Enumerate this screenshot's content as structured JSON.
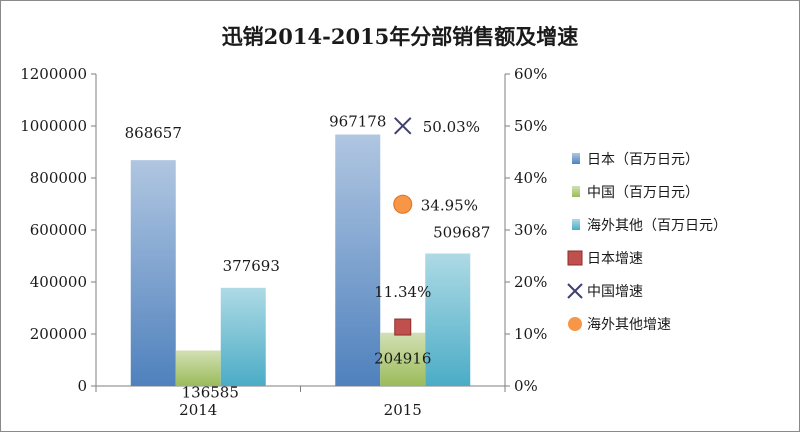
{
  "chart_data": {
    "type": "bar",
    "title": "迅销2014-2015年分部销售额及增速",
    "categories": [
      "2014",
      "2015"
    ],
    "series": [
      {
        "name": "日本（百万日元）",
        "axis": "left",
        "color": "#4f81bd",
        "values": [
          868657,
          967178
        ],
        "labels": [
          "868657",
          "967178"
        ]
      },
      {
        "name": "中国（百万日元）",
        "axis": "left",
        "color": "#9bbb59",
        "values": [
          136585,
          204916
        ],
        "labels": [
          "136585",
          "204916"
        ]
      },
      {
        "name": "海外其他（百万日元）",
        "axis": "left",
        "color": "#4bacc6",
        "values": [
          377693,
          509687
        ],
        "labels": [
          "377693",
          "509687"
        ]
      }
    ],
    "markers": [
      {
        "name": "日本增速",
        "axis": "right",
        "marker": "square",
        "color": "#c0504d",
        "x": "2015",
        "value": 11.34,
        "label": "11.34%"
      },
      {
        "name": "中国增速",
        "axis": "right",
        "marker": "x",
        "color": "#404070",
        "x": "2015",
        "value": 50.03,
        "label": "50.03%"
      },
      {
        "name": "海外其他增速",
        "axis": "right",
        "marker": "circle",
        "color": "#f79646",
        "x": "2015",
        "value": 34.95,
        "label": "34.95%"
      }
    ],
    "y_left": {
      "min": 0,
      "max": 1200000,
      "ticks": [
        "0",
        "200000",
        "400000",
        "600000",
        "800000",
        "1000000",
        "1200000"
      ]
    },
    "y_right": {
      "min": 0,
      "max": 60,
      "ticks": [
        "0%",
        "10%",
        "20%",
        "30%",
        "40%",
        "50%",
        "60%"
      ]
    },
    "grid": false,
    "legend": "right"
  }
}
